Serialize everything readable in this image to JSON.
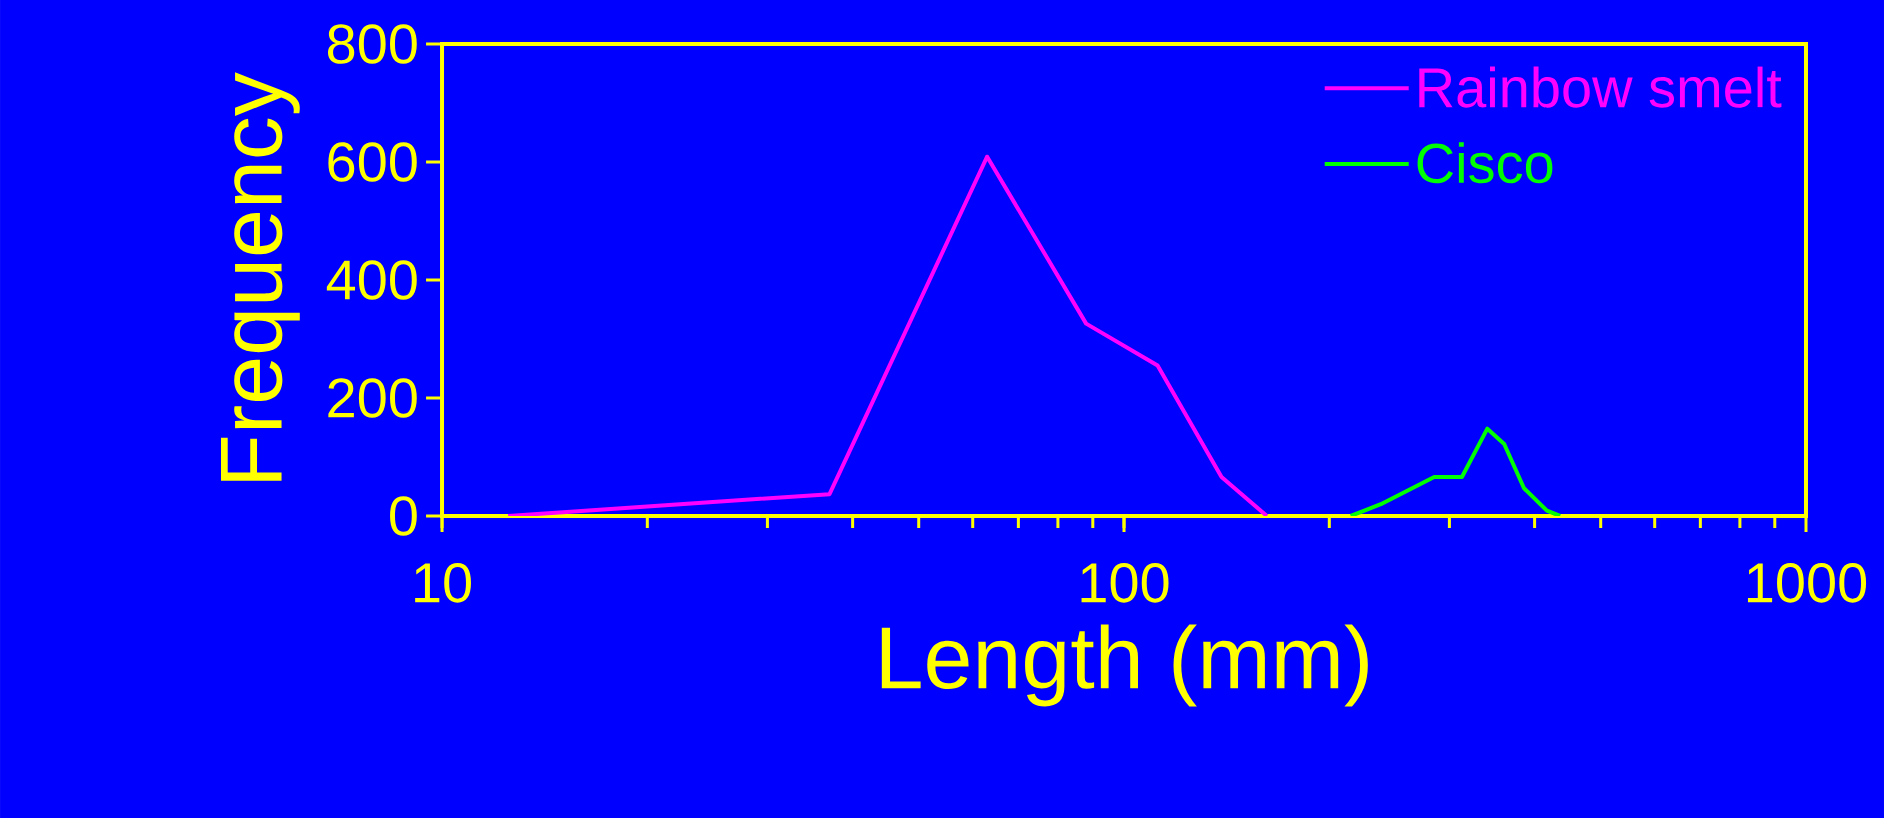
{
  "chart_data": {
    "type": "line",
    "xlabel": "Length (mm)",
    "ylabel": "Frequency",
    "log": "x",
    "xlim": [
      10,
      1000
    ],
    "xticks": [
      10,
      100,
      1000
    ],
    "ylim": [
      0,
      800
    ],
    "yticks": [
      0,
      200,
      400,
      600,
      800
    ],
    "grid": false,
    "legend": "top right",
    "series": [
      {
        "name": "Rainbow smelt",
        "color": "#ff00ff",
        "x": [
          12.5,
          37,
          63,
          88,
          112,
          139,
          162
        ],
        "values": [
          0,
          37,
          609,
          326,
          255,
          66,
          0
        ]
      },
      {
        "name": "Cisco",
        "color": "#00ff00",
        "x": [
          215,
          238,
          285,
          313,
          341,
          361,
          386,
          417,
          436
        ],
        "values": [
          0,
          20,
          66,
          66,
          148,
          122,
          47,
          9,
          0
        ]
      }
    ]
  }
}
